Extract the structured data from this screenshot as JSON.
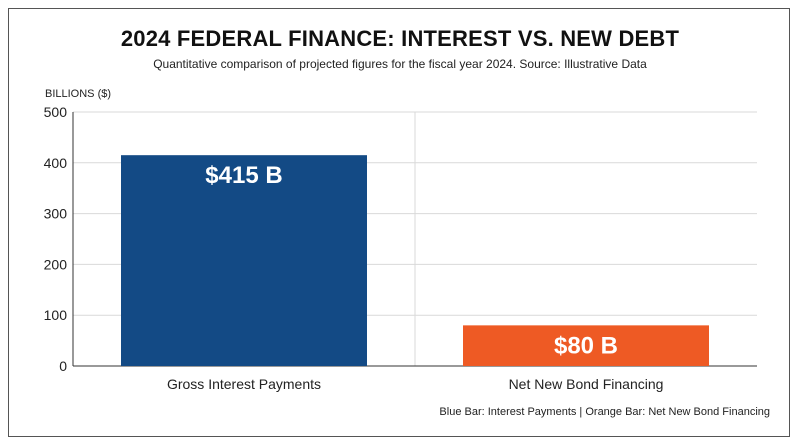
{
  "chart_data": {
    "type": "bar",
    "title": "2024 FEDERAL FINANCE: INTEREST VS. NEW DEBT",
    "subtitle": "Quantitative comparison of projected figures for the fiscal year 2024. Source: Illustrative Data",
    "ylabel": "BILLIONS ($)",
    "xlabel": "",
    "ylim": [
      0,
      500
    ],
    "yticks": [
      0,
      100,
      200,
      300,
      400,
      500
    ],
    "categories": [
      "Gross Interest Payments",
      "Net New Bond Financing"
    ],
    "values": [
      415,
      80
    ],
    "data_labels": [
      "$415 B",
      "$80 B"
    ],
    "colors": [
      "#134a85",
      "#ee5a24"
    ],
    "grid": true,
    "footer": "Blue Bar: Interest Payments | Orange Bar: Net New Bond Financing"
  }
}
